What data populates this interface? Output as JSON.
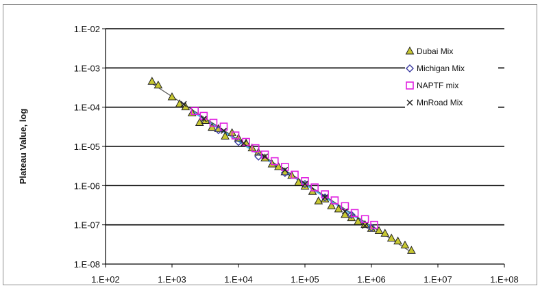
{
  "chart_data": {
    "type": "scatter",
    "ylabel": "Plateau Value, log",
    "xlabel": "",
    "x_scale": "log",
    "y_scale": "log",
    "xlim": [
      100,
      100000000
    ],
    "ylim": [
      1e-08,
      0.01
    ],
    "x_tick_labels": [
      "1.E+02",
      "1.E+03",
      "1.E+04",
      "1.E+05",
      "1.E+06",
      "1.E+07",
      "1.E+08"
    ],
    "y_tick_labels": [
      "1.E-02",
      "1.E-03",
      "1.E-04",
      "1.E-05",
      "1.E-06",
      "1.E-07",
      "1.E-08"
    ],
    "grid": "horizontal major gridlines",
    "legend": "top-right",
    "series": [
      {
        "name": "Dubai Mix",
        "marker": "triangle",
        "color": "#c8c832",
        "points": [
          [
            500,
            0.00045
          ],
          [
            620,
            0.00036
          ],
          [
            1000,
            0.00018
          ],
          [
            1300,
            0.00012
          ],
          [
            1600,
            0.0001
          ],
          [
            2000,
            7e-05
          ],
          [
            2600,
            4e-05
          ],
          [
            3200,
            4.5e-05
          ],
          [
            4000,
            3e-05
          ],
          [
            5000,
            2.8e-05
          ],
          [
            6300,
            1.8e-05
          ],
          [
            8000,
            2.2e-05
          ],
          [
            10000,
            1.6e-05
          ],
          [
            13000,
            1.2e-05
          ],
          [
            16000,
            9e-06
          ],
          [
            20000,
            7e-06
          ],
          [
            25000,
            5e-06
          ],
          [
            32000,
            3.5e-06
          ],
          [
            40000,
            3e-06
          ],
          [
            50000,
            2.2e-06
          ],
          [
            63000,
            1.8e-06
          ],
          [
            80000,
            1.2e-06
          ],
          [
            100000,
            9.5e-07
          ],
          [
            130000,
            7e-07
          ],
          [
            160000,
            4e-07
          ],
          [
            200000,
            4.5e-07
          ],
          [
            250000,
            3e-07
          ],
          [
            320000,
            2.5e-07
          ],
          [
            400000,
            1.8e-07
          ],
          [
            500000,
            1.5e-07
          ],
          [
            630000,
            1.2e-07
          ],
          [
            800000,
            1e-07
          ],
          [
            1000000,
            8e-08
          ],
          [
            1300000,
            7e-08
          ],
          [
            1600000,
            6e-08
          ],
          [
            2000000,
            4.5e-08
          ],
          [
            2500000,
            3.8e-08
          ],
          [
            3200000,
            3e-08
          ],
          [
            4000000,
            2.2e-08
          ]
        ]
      },
      {
        "name": "Michigan Mix",
        "marker": "diamond",
        "color": "#3a3aa0",
        "points": [
          [
            5000,
            2.6e-05
          ],
          [
            10000,
            1.3e-05
          ],
          [
            20000,
            5.5e-06
          ],
          [
            50000,
            2.1e-06
          ],
          [
            100000,
            1.1e-06
          ],
          [
            200000,
            5e-07
          ],
          [
            500000,
            1.8e-07
          ],
          [
            1000000,
            8.5e-08
          ]
        ]
      },
      {
        "name": "NAPTF mix",
        "marker": "square",
        "color": "#e020e0",
        "points": [
          [
            2200,
            8e-05
          ],
          [
            3000,
            6e-05
          ],
          [
            4200,
            4e-05
          ],
          [
            6000,
            3.2e-05
          ],
          [
            9000,
            1.9e-05
          ],
          [
            13000,
            1.3e-05
          ],
          [
            18000,
            9e-06
          ],
          [
            25000,
            6.2e-06
          ],
          [
            35000,
            4.2e-06
          ],
          [
            50000,
            3e-06
          ],
          [
            70000,
            1.9e-06
          ],
          [
            100000,
            1.3e-06
          ],
          [
            140000,
            9e-07
          ],
          [
            200000,
            6e-07
          ],
          [
            280000,
            4.2e-07
          ],
          [
            400000,
            3e-07
          ],
          [
            560000,
            2e-07
          ],
          [
            800000,
            1.4e-07
          ],
          [
            1100000,
            1e-07
          ]
        ]
      },
      {
        "name": "MnRoad Mix",
        "marker": "x",
        "color": "#222222",
        "points": [
          [
            1500,
            0.00012
          ],
          [
            3000,
            5e-05
          ],
          [
            6000,
            2.5e-05
          ],
          [
            12000,
            1.2e-05
          ],
          [
            25000,
            5.5e-06
          ],
          [
            50000,
            2.5e-06
          ],
          [
            100000,
            1.1e-06
          ],
          [
            200000,
            5e-07
          ],
          [
            400000,
            2.2e-07
          ],
          [
            800000,
            9.5e-08
          ]
        ]
      }
    ],
    "fit_lines": [
      {
        "color": "#4fb4e8",
        "from": [
          2000,
          8e-05
        ],
        "to": [
          1100000,
          8e-08
        ]
      },
      {
        "color": "#555555",
        "from": [
          500,
          0.0004
        ],
        "to": [
          4000000,
          2e-08
        ]
      }
    ]
  }
}
